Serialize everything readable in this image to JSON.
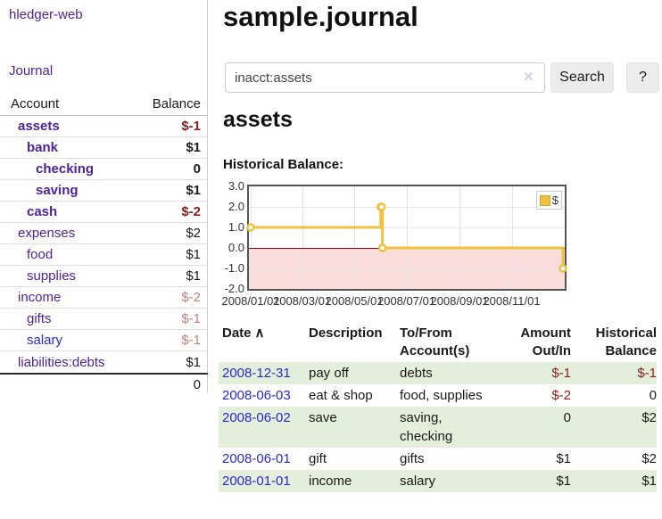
{
  "app": {
    "title": "hledger-web"
  },
  "sidebar": {
    "journal_link": "Journal",
    "table": {
      "account_header": "Account",
      "balance_header": "Balance",
      "rows": [
        {
          "name": "assets",
          "indent": 1,
          "bold": true,
          "link_color": "purple",
          "balance": "$-1",
          "balance_style": "neg"
        },
        {
          "name": "bank",
          "indent": 2,
          "bold": true,
          "link_color": "purple",
          "balance": "$1",
          "balance_style": ""
        },
        {
          "name": "checking",
          "indent": 3,
          "bold": true,
          "link_color": "purple",
          "balance": "0",
          "balance_style": ""
        },
        {
          "name": "saving",
          "indent": 3,
          "bold": true,
          "link_color": "purple",
          "balance": "$1",
          "balance_style": ""
        },
        {
          "name": "cash",
          "indent": 2,
          "bold": true,
          "link_color": "purple",
          "balance": "$-2",
          "balance_style": "neg"
        },
        {
          "name": "expenses",
          "indent": 1,
          "bold": false,
          "link_color": "purple",
          "balance": "$2",
          "balance_style": ""
        },
        {
          "name": "food",
          "indent": 2,
          "bold": false,
          "link_color": "purple",
          "balance": "$1",
          "balance_style": ""
        },
        {
          "name": "supplies",
          "indent": 2,
          "bold": false,
          "link_color": "purple",
          "balance": "$1",
          "balance_style": ""
        },
        {
          "name": "income",
          "indent": 1,
          "bold": false,
          "link_color": "purple",
          "balance": "$-2",
          "balance_style": "fade"
        },
        {
          "name": "gifts",
          "indent": 2,
          "bold": false,
          "link_color": "purple",
          "balance": "$-1",
          "balance_style": "fade"
        },
        {
          "name": "salary",
          "indent": 2,
          "bold": false,
          "link_color": "blue",
          "balance": "$-1",
          "balance_style": "fade"
        },
        {
          "name": "liabilities:debts",
          "indent": 1,
          "bold": false,
          "link_color": "purple",
          "balance": "$1",
          "balance_style": ""
        }
      ],
      "total": "0"
    }
  },
  "header": {
    "title": "sample.journal"
  },
  "search": {
    "value": "inacct:assets",
    "clear_icon": "✕",
    "button_label": "Search",
    "help_label": "?"
  },
  "account_page": {
    "heading": "assets",
    "chart_label": "Historical Balance:"
  },
  "chart_data": {
    "type": "line",
    "style": "step-after",
    "title": "Historical Balance",
    "legend": [
      {
        "label": "$",
        "color": "#EDC240"
      }
    ],
    "ylim": [
      -2,
      3
    ],
    "y_ticks": [
      3.0,
      2.0,
      1.0,
      0.0,
      -1.0,
      -2.0
    ],
    "x_range_days": 366,
    "x_ticks": [
      {
        "label": "2008/01/01",
        "day": 0
      },
      {
        "label": "2008/03/01",
        "day": 60
      },
      {
        "label": "2008/05/01",
        "day": 121
      },
      {
        "label": "2008/07/01",
        "day": 182
      },
      {
        "label": "2008/09/01",
        "day": 244
      },
      {
        "label": "2008/11/01",
        "day": 305
      }
    ],
    "series": [
      {
        "name": "$",
        "points": [
          {
            "date": "2008-01-01",
            "day": 0,
            "value": 1
          },
          {
            "date": "2008-06-01",
            "day": 152,
            "value": 2
          },
          {
            "date": "2008-06-02",
            "day": 153,
            "value": 2
          },
          {
            "date": "2008-06-03",
            "day": 154,
            "value": 0
          },
          {
            "date": "2008-12-31",
            "day": 365,
            "value": -1
          }
        ]
      }
    ],
    "negative_region_shaded": true
  },
  "register": {
    "headers": {
      "date": "Date",
      "sort_icon": "∧",
      "description": "Description",
      "accounts_line1": "To/From",
      "accounts_line2": "Account(s)",
      "amount_line1": "Amount",
      "amount_line2": "Out/In",
      "balance_line1": "Historical",
      "balance_line2": "Balance"
    },
    "rows": [
      {
        "date": "2008-12-31",
        "description": "pay off",
        "accounts": "debts",
        "amount": "$-1",
        "amount_negative": true,
        "balance": "$-1",
        "balance_negative": true
      },
      {
        "date": "2008-06-03",
        "description": "eat & shop",
        "accounts": "food, supplies",
        "amount": "$-2",
        "amount_negative": true,
        "balance": "0",
        "balance_negative": false
      },
      {
        "date": "2008-06-02",
        "description": "save",
        "accounts": "saving, checking",
        "amount": "0",
        "amount_negative": false,
        "balance": "$2",
        "balance_negative": false
      },
      {
        "date": "2008-06-01",
        "description": "gift",
        "accounts": "gifts",
        "amount": "$1",
        "amount_negative": false,
        "balance": "$2",
        "balance_negative": false
      },
      {
        "date": "2008-01-01",
        "description": "income",
        "accounts": "salary",
        "amount": "$1",
        "amount_negative": false,
        "balance": "$1",
        "balance_negative": false
      }
    ]
  },
  "colors": {
    "link_purple": "#4d2496",
    "link_blue": "#2929cc",
    "negative_red": "#8b1c1c",
    "negative_faded_red": "#c17f7f",
    "row_green": "#e3eedb",
    "chart_line_gold": "#EDC240",
    "chart_negative_pink": "#fbdcdc",
    "chart_zero_line": "#8b0000"
  }
}
